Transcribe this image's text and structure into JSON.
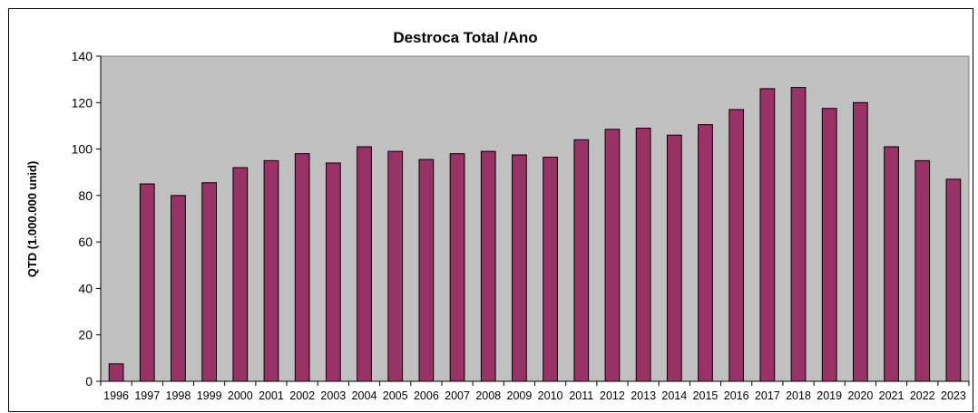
{
  "chart_data": {
    "type": "bar",
    "title": "Destroca Total /Ano",
    "xlabel": "",
    "ylabel": "QTD (1.000.000 unid)",
    "ylim": [
      0,
      140
    ],
    "yticks": [
      0,
      20,
      40,
      60,
      80,
      100,
      120,
      140
    ],
    "grid": false,
    "legend": "none",
    "colors": {
      "bar": "#993366",
      "plot_area": "#c0c0c0",
      "outline": "#000000"
    },
    "categories": [
      "1996",
      "1997",
      "1998",
      "1999",
      "2000",
      "2001",
      "2002",
      "2003",
      "2004",
      "2005",
      "2006",
      "2007",
      "2008",
      "2009",
      "2010",
      "2011",
      "2012",
      "2013",
      "2014",
      "2015",
      "2016",
      "2017",
      "2018",
      "2019",
      "2020",
      "2021",
      "2022",
      "2023"
    ],
    "values": [
      7.5,
      85,
      80,
      85.5,
      92,
      95,
      98,
      94,
      101,
      99,
      95.5,
      98,
      99,
      97.5,
      96.5,
      104,
      108.5,
      109,
      106,
      110.5,
      117,
      126,
      126.5,
      117.5,
      120,
      101,
      95,
      87
    ]
  }
}
